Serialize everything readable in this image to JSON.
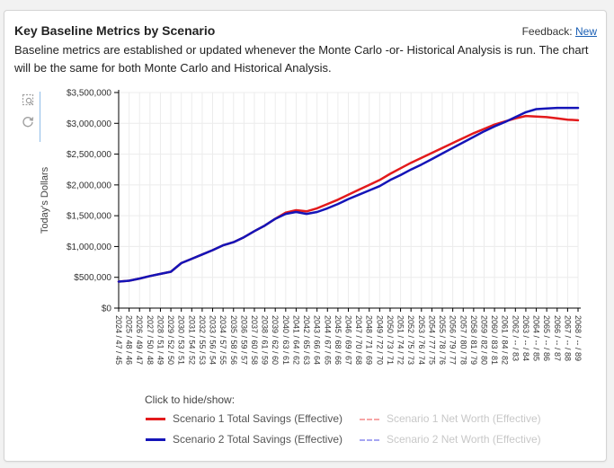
{
  "card": {
    "title": "Key Baseline Metrics by Scenario",
    "feedback_label": "Feedback:",
    "feedback_link": "New",
    "description": "Baseline metrics are established or updated whenever the Monte Carlo -or- Historical Analysis is run. The chart will be the same for both Monte Carlo and Historical Analysis."
  },
  "toolbar": {
    "zoom_icon": "box-zoom-icon",
    "reset_icon": "reset-icon"
  },
  "legend": {
    "caption": "Click to hide/show:",
    "items": [
      {
        "label": "Scenario 1 Total Savings (Effective)",
        "color": "#e31a1c",
        "style": "solid",
        "visible": true
      },
      {
        "label": "Scenario 1 Net Worth (Effective)",
        "color": "#f7a6a6",
        "style": "dashed",
        "visible": false
      },
      {
        "label": "Scenario 2 Total Savings (Effective)",
        "color": "#1414b8",
        "style": "solid",
        "visible": true
      },
      {
        "label": "Scenario 2 Net Worth (Effective)",
        "color": "#a6a6f2",
        "style": "dashed",
        "visible": false
      }
    ]
  },
  "chart_data": {
    "type": "line",
    "ylabel": "Today's Dollars",
    "ylim": [
      0,
      3500000
    ],
    "yticks": [
      0,
      500000,
      1000000,
      1500000,
      2000000,
      2500000,
      3000000,
      3500000
    ],
    "ytick_labels": [
      "$0",
      "$500,000",
      "$1,000,000",
      "$1,500,000",
      "$2,000,000",
      "$2,500,000",
      "$3,000,000",
      "$3,500,000"
    ],
    "grid": true,
    "legend_position": "bottom",
    "categories": [
      "2024 / 47 / 45",
      "2025 / 48 / 46",
      "2026 / 49 / 47",
      "2027 / 50 / 48",
      "2028 / 51 / 49",
      "2029 / 52 / 50",
      "2030 / 53 / 51",
      "2031 / 54 / 52",
      "2032 / 55 / 53",
      "2033 / 56 / 54",
      "2034 / 57 / 55",
      "2035 / 58 / 56",
      "2036 / 59 / 57",
      "2037 / 60 / 58",
      "2038 / 61 / 59",
      "2039 / 62 / 60",
      "2040 / 63 / 61",
      "2041 / 64 / 62",
      "2042 / 65 / 63",
      "2043 / 66 / 64",
      "2044 / 67 / 65",
      "2045 / 68 / 66",
      "2046 / 69 / 67",
      "2047 / 70 / 68",
      "2048 / 71 / 69",
      "2049 / 72 / 70",
      "2050 / 73 / 71",
      "2051 / 74 / 72",
      "2052 / 75 / 73",
      "2053 / 76 / 74",
      "2054 / 77 / 75",
      "2055 / 78 / 76",
      "2056 / 79 / 77",
      "2057 / 80 / 78",
      "2058 / 81 / 79",
      "2059 / 82 / 80",
      "2060 / 83 / 81",
      "2061 / 84 / 82",
      "2062 / -- / 83",
      "2063 / -- / 84",
      "2064 / -- / 85",
      "2065 / -- / 86",
      "2066 / -- / 87",
      "2067 / -- / 88",
      "2068 / -- / 89"
    ],
    "tick_labels": [
      "2024 / 47 / 45",
      "2025 / 48 / 46",
      "2026 / 49 / 47",
      "2027 / 50 / 48",
      "2028 / 51 / 49",
      "2029 / 52 / 50",
      "2030 / 53 / 51",
      "2031 / 54 / 52",
      "2032 / 55 / 53",
      "2033 / 56 / 54",
      "2034 / 57 / 55",
      "2035 / 58 / 56",
      "2036 / 59 / 57",
      "2037 / 60 / 58",
      "2038 / 61 / 59",
      "2039 / 62 / 60",
      "2040 / 63 / 61",
      "2041 / 64 / 62",
      "2042 / 65 / 63",
      "2043 / 66 / 64",
      "2044 / 67 / 65",
      "2045 / 68 / 66",
      "2046 / 69 / 67",
      "2047 / 70 / 68",
      "2048 / 71 / 69",
      "2049 / 72 / 70",
      "2050 / 73 / 71",
      "2051 / 74 / 72",
      "2052 / 75 / 73",
      "2053 / 76 / 74",
      "2054 / 77 / 75",
      "2055 / 78 / 76",
      "2056 / 79 / 77",
      "2057 / 80 / 78",
      "2058 / 81 / 79",
      "2059 / 82 / 80",
      "2060 / 83 / 81",
      "2061 / 84 / 82",
      "2062 / -- / 83",
      "2063 / -- / 84",
      "2064 / -- / 85",
      "2065 / -- / 86",
      "2066 / -- / 87",
      "2067 / -- / 88",
      "2068 / -- / 89"
    ],
    "series": [
      {
        "name": "Scenario 1 Total Savings (Effective)",
        "color": "#e31a1c",
        "values": [
          430000,
          445000,
          480000,
          520000,
          555000,
          590000,
          730000,
          800000,
          870000,
          940000,
          1020000,
          1070000,
          1150000,
          1250000,
          1340000,
          1450000,
          1550000,
          1590000,
          1570000,
          1620000,
          1690000,
          1760000,
          1840000,
          1920000,
          2000000,
          2080000,
          2180000,
          2270000,
          2360000,
          2440000,
          2520000,
          2600000,
          2680000,
          2760000,
          2840000,
          2910000,
          2980000,
          3030000,
          3080000,
          3120000,
          3110000,
          3100000,
          3080000,
          3060000,
          3050000
        ]
      },
      {
        "name": "Scenario 2 Total Savings (Effective)",
        "color": "#1414b8",
        "values": [
          430000,
          445000,
          480000,
          520000,
          555000,
          590000,
          730000,
          800000,
          870000,
          940000,
          1020000,
          1070000,
          1150000,
          1250000,
          1340000,
          1450000,
          1530000,
          1560000,
          1530000,
          1560000,
          1620000,
          1690000,
          1770000,
          1840000,
          1910000,
          1980000,
          2080000,
          2160000,
          2250000,
          2330000,
          2420000,
          2510000,
          2600000,
          2690000,
          2780000,
          2870000,
          2950000,
          3020000,
          3100000,
          3180000,
          3230000,
          3240000,
          3250000,
          3250000,
          3250000
        ]
      }
    ]
  }
}
